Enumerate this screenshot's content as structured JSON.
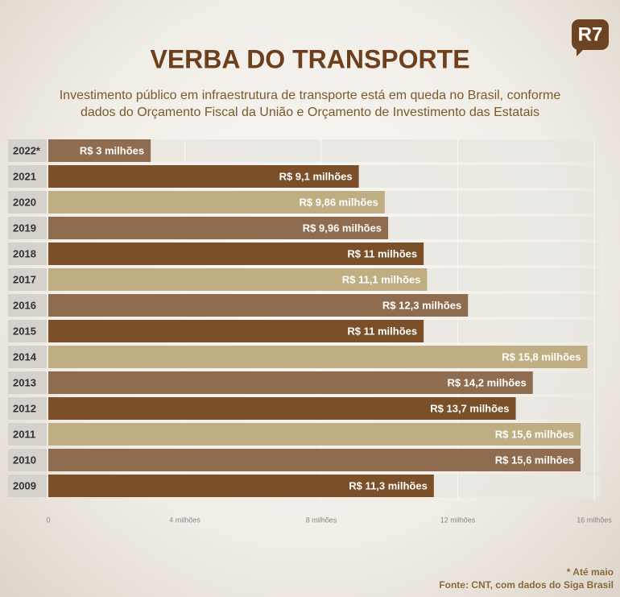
{
  "logo": "R7",
  "chart_data": {
    "type": "bar",
    "orientation": "horizontal",
    "title": "VERBA DO TRANSPORTE",
    "subtitle": [
      "Investimento público em infraestrutura de transporte está em queda no Brasil, conforme",
      "dados do Orçamento Fiscal da União e Orçamento de Investimento das Estatais"
    ],
    "categories": [
      "2022*",
      "2021",
      "2020",
      "2019",
      "2018",
      "2017",
      "2016",
      "2015",
      "2014",
      "2013",
      "2012",
      "2011",
      "2010",
      "2009"
    ],
    "values": [
      3,
      9.1,
      9.86,
      9.96,
      11,
      11.1,
      12.3,
      11,
      15.8,
      14.2,
      13.7,
      15.6,
      15.6,
      11.3
    ],
    "value_labels": [
      "R$ 3 milhões",
      "R$ 9,1 milhões",
      "R$ 9,86 milhões",
      "R$ 9,96 milhões",
      "R$ 11 milhões",
      "R$ 11,1 milhões",
      "R$ 12,3 milhões",
      "R$ 11 milhões",
      "R$ 15,8 milhões",
      "R$ 14,2 milhões",
      "R$ 13,7 milhões",
      "R$ 15,6 milhões",
      "R$ 15,6 milhões",
      "R$ 11,3 milhões"
    ],
    "colors": [
      "#8f6c4f",
      "#7b4f27",
      "#bfae82",
      "#8f6c4f",
      "#7b4f27",
      "#bfae82",
      "#8f6c4f",
      "#7b4f27",
      "#bfae82",
      "#8f6c4f",
      "#7b4f27",
      "#bfae82",
      "#8f6c4f",
      "#7b4f27"
    ],
    "xlim": [
      0,
      16
    ],
    "xticks": [
      0,
      {
        "value": 4,
        "label": "4 milhões"
      },
      {
        "value": 8,
        "label": "8 milhões"
      },
      {
        "value": 12,
        "label": "12 milhões"
      },
      {
        "value": 16,
        "label": "16 milhões"
      }
    ],
    "grid": true,
    "footnote": "* Até maio",
    "source": "Fonte: CNT, com dados do Siga Brasil"
  }
}
